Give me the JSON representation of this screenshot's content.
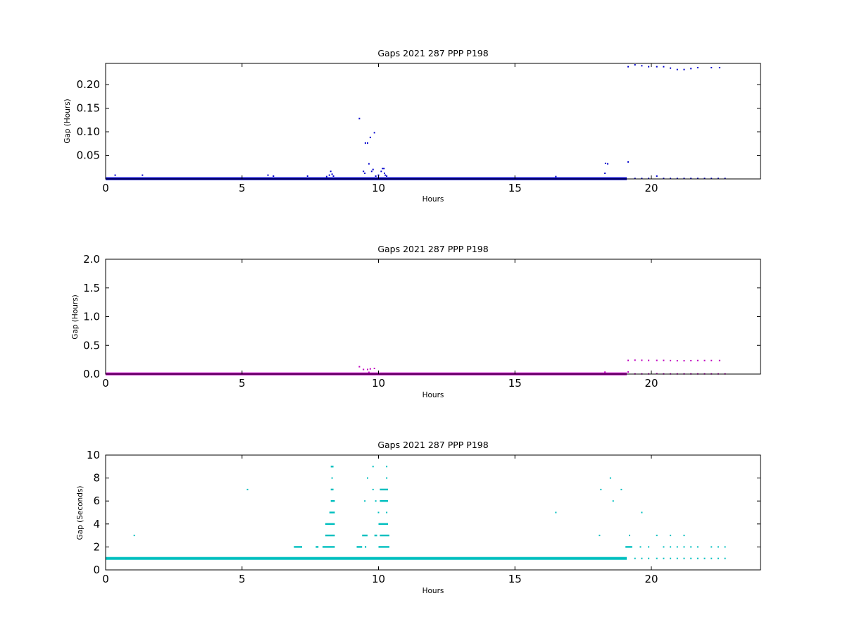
{
  "figure": {
    "background": "#ffffff"
  },
  "chart_data": [
    {
      "type": "scatter",
      "title": "Gaps 2021 287 PPP  P198",
      "xlabel": "Hours",
      "ylabel": "Gap (Hours)",
      "xlim": [
        0,
        24
      ],
      "ylim": [
        0,
        0.245
      ],
      "xticks": [
        "0",
        "5",
        "10",
        "15",
        "20"
      ],
      "yticks": [
        "0.05",
        "0.10",
        "0.15",
        "0.20"
      ],
      "grid": false,
      "series": [
        {
          "color": "#0000cc",
          "dense_band": {
            "y": 0.0005,
            "x_start": 0,
            "x_end": 19.1
          },
          "points": [
            [
              0.35,
              0.008
            ],
            [
              1.35,
              0.008
            ],
            [
              5.95,
              0.008
            ],
            [
              6.15,
              0.006
            ],
            [
              7.4,
              0.006
            ],
            [
              8.1,
              0.005
            ],
            [
              8.2,
              0.008
            ],
            [
              8.25,
              0.016
            ],
            [
              8.3,
              0.01
            ],
            [
              8.35,
              0.006
            ],
            [
              9.3,
              0.128
            ],
            [
              9.45,
              0.016
            ],
            [
              9.5,
              0.012
            ],
            [
              9.52,
              0.076
            ],
            [
              9.6,
              0.076
            ],
            [
              9.65,
              0.032
            ],
            [
              9.7,
              0.088
            ],
            [
              9.75,
              0.016
            ],
            [
              9.8,
              0.02
            ],
            [
              9.85,
              0.098
            ],
            [
              9.9,
              0.006
            ],
            [
              10.0,
              0.008
            ],
            [
              10.1,
              0.016
            ],
            [
              10.15,
              0.022
            ],
            [
              10.2,
              0.022
            ],
            [
              10.22,
              0.012
            ],
            [
              10.25,
              0.008
            ],
            [
              10.3,
              0.006
            ],
            [
              16.5,
              0.005
            ],
            [
              18.3,
              0.012
            ],
            [
              18.32,
              0.033
            ],
            [
              18.4,
              0.032
            ],
            [
              19.15,
              0.036
            ],
            [
              19.15,
              0.238
            ],
            [
              19.4,
              0.242
            ],
            [
              19.65,
              0.24
            ],
            [
              19.9,
              0.238
            ],
            [
              20.2,
              0.238
            ],
            [
              20.45,
              0.238
            ],
            [
              20.7,
              0.235
            ],
            [
              20.95,
              0.232
            ],
            [
              21.2,
              0.232
            ],
            [
              21.45,
              0.234
            ],
            [
              21.7,
              0.236
            ],
            [
              22.2,
              0.236
            ],
            [
              22.5,
              0.236
            ],
            [
              19.4,
              0.001
            ],
            [
              19.65,
              0.001
            ],
            [
              19.9,
              0.001
            ],
            [
              20.2,
              0.006
            ],
            [
              20.45,
              0.001
            ],
            [
              20.7,
              0.001
            ],
            [
              20.95,
              0.001
            ],
            [
              21.2,
              0.001
            ],
            [
              21.45,
              0.001
            ],
            [
              21.7,
              0.001
            ],
            [
              21.95,
              0.001
            ],
            [
              22.2,
              0.001
            ],
            [
              22.45,
              0.001
            ],
            [
              22.7,
              0.001
            ]
          ]
        }
      ]
    },
    {
      "type": "scatter",
      "title": "Gaps 2021 287 PPP  P198",
      "xlabel": "Hours",
      "ylabel": "Gap (Hours)",
      "xlim": [
        0,
        24
      ],
      "ylim": [
        0,
        2.0
      ],
      "xticks": [
        "0",
        "5",
        "10",
        "15",
        "20"
      ],
      "yticks": [
        "0.0",
        "0.5",
        "1.0",
        "1.5",
        "2.0"
      ],
      "grid": false,
      "series": [
        {
          "color": "#bf00bf",
          "dense_band": {
            "y": 0.003,
            "x_start": 0,
            "x_end": 19.1
          },
          "points": [
            [
              9.3,
              0.128
            ],
            [
              9.45,
              0.08
            ],
            [
              9.6,
              0.08
            ],
            [
              9.65,
              0.03
            ],
            [
              9.7,
              0.09
            ],
            [
              9.85,
              0.098
            ],
            [
              18.3,
              0.033
            ],
            [
              19.15,
              0.036
            ],
            [
              19.15,
              0.238
            ],
            [
              19.4,
              0.242
            ],
            [
              19.65,
              0.24
            ],
            [
              19.9,
              0.238
            ],
            [
              20.2,
              0.238
            ],
            [
              20.45,
              0.238
            ],
            [
              20.7,
              0.235
            ],
            [
              20.95,
              0.232
            ],
            [
              21.2,
              0.232
            ],
            [
              21.45,
              0.234
            ],
            [
              21.7,
              0.236
            ],
            [
              21.95,
              0.236
            ],
            [
              22.2,
              0.236
            ],
            [
              22.5,
              0.236
            ],
            [
              19.4,
              0.003
            ],
            [
              19.65,
              0.003
            ],
            [
              19.9,
              0.003
            ],
            [
              20.2,
              0.006
            ],
            [
              20.45,
              0.003
            ],
            [
              20.7,
              0.003
            ],
            [
              20.95,
              0.003
            ],
            [
              21.2,
              0.003
            ],
            [
              21.45,
              0.003
            ],
            [
              21.7,
              0.003
            ],
            [
              21.95,
              0.003
            ],
            [
              22.2,
              0.003
            ],
            [
              22.45,
              0.003
            ],
            [
              22.7,
              0.003
            ]
          ]
        }
      ]
    },
    {
      "type": "scatter",
      "title": "Gaps 2021 287 PPP  P198",
      "xlabel": "Hours",
      "ylabel": "Gap (Seconds)",
      "xlim": [
        0,
        24
      ],
      "ylim": [
        0,
        10
      ],
      "xticks": [
        "0",
        "5",
        "10",
        "15",
        "20"
      ],
      "yticks": [
        "0",
        "2",
        "4",
        "6",
        "8",
        "10"
      ],
      "grid": false,
      "series": [
        {
          "color": "#00bfbf",
          "dense_band": {
            "y": 1,
            "x_start": 0,
            "x_end": 19.1
          },
          "segments": [
            [
              6.9,
              7.2,
              2
            ],
            [
              7.7,
              7.8,
              2
            ],
            [
              7.95,
              8.4,
              2
            ],
            [
              8.05,
              8.4,
              3
            ],
            [
              8.05,
              8.4,
              4
            ],
            [
              8.2,
              8.4,
              5
            ],
            [
              8.25,
              8.4,
              6
            ],
            [
              8.25,
              8.35,
              7
            ],
            [
              8.25,
              8.35,
              9
            ],
            [
              9.2,
              9.4,
              2
            ],
            [
              9.5,
              9.55,
              2
            ],
            [
              9.4,
              9.6,
              3
            ],
            [
              9.85,
              9.95,
              3
            ],
            [
              10.0,
              10.4,
              2
            ],
            [
              10.05,
              10.4,
              3
            ],
            [
              10.0,
              10.35,
              4
            ],
            [
              10.05,
              10.35,
              6
            ],
            [
              10.05,
              10.35,
              7
            ],
            [
              19.05,
              19.3,
              2
            ]
          ],
          "points": [
            [
              1.05,
              3
            ],
            [
              5.2,
              7
            ],
            [
              8.3,
              8
            ],
            [
              9.5,
              6
            ],
            [
              9.6,
              8
            ],
            [
              9.8,
              9
            ],
            [
              9.8,
              7
            ],
            [
              9.9,
              6
            ],
            [
              10.0,
              5
            ],
            [
              10.3,
              5
            ],
            [
              10.3,
              8
            ],
            [
              10.3,
              9
            ],
            [
              16.5,
              5
            ],
            [
              18.1,
              3
            ],
            [
              18.15,
              7
            ],
            [
              18.5,
              8
            ],
            [
              18.6,
              6
            ],
            [
              18.9,
              7
            ],
            [
              19.2,
              3
            ],
            [
              19.65,
              5
            ],
            [
              20.2,
              3
            ],
            [
              20.7,
              3
            ],
            [
              21.2,
              3
            ],
            [
              19.6,
              2
            ],
            [
              19.9,
              2
            ],
            [
              20.45,
              2
            ],
            [
              20.7,
              2
            ],
            [
              20.95,
              2
            ],
            [
              21.2,
              2
            ],
            [
              21.45,
              2
            ],
            [
              21.7,
              2
            ],
            [
              22.2,
              2
            ],
            [
              22.45,
              2
            ],
            [
              22.7,
              2
            ],
            [
              19.4,
              1
            ],
            [
              19.65,
              1
            ],
            [
              19.9,
              1
            ],
            [
              20.2,
              1
            ],
            [
              20.45,
              1
            ],
            [
              20.7,
              1
            ],
            [
              20.95,
              1
            ],
            [
              21.2,
              1
            ],
            [
              21.45,
              1
            ],
            [
              21.7,
              1
            ],
            [
              21.95,
              1
            ],
            [
              22.2,
              1
            ],
            [
              22.45,
              1
            ],
            [
              22.7,
              1
            ]
          ]
        }
      ]
    }
  ]
}
